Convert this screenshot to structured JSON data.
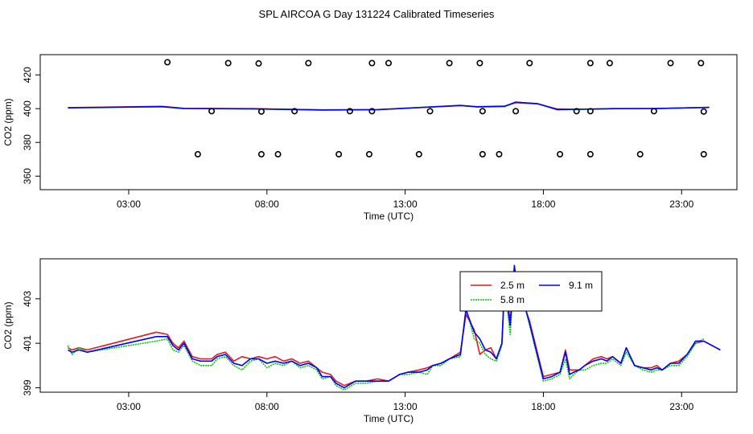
{
  "page_title": "SPL AIRCOA G  Day 131224  Calibrated Timeseries",
  "colors": {
    "red": "#e41a1c",
    "green": "#00cc00",
    "blue": "#0000ff",
    "black": "#000000"
  },
  "chart_data": [
    {
      "type": "line",
      "name": "top-panel",
      "xlabel": "Time (UTC)",
      "ylabel": "CO2 (ppm)",
      "xlim": [
        -0.2,
        25.0
      ],
      "ylim": [
        352,
        432
      ],
      "xticks": [
        3,
        8,
        13,
        18,
        23
      ],
      "xtick_labels": [
        "03:00",
        "08:00",
        "13:00",
        "18:00",
        "23:00"
      ],
      "yticks": [
        360,
        380,
        400,
        420
      ],
      "ytick_labels": [
        "360",
        "380",
        "400",
        "420"
      ],
      "series": [
        {
          "color": "red",
          "x": [
            0.8,
            4.2,
            5.0,
            7.5,
            10.0,
            12.0,
            15.0,
            15.6,
            16.6,
            17.0,
            17.8,
            18.5,
            19.2,
            20.5,
            22.0,
            24.0
          ],
          "y": [
            400.6,
            401.4,
            400.2,
            400.0,
            399.3,
            399.5,
            401.8,
            401.2,
            401.5,
            403.5,
            402.8,
            399.8,
            399.6,
            400.0,
            400.0,
            400.8
          ]
        },
        {
          "color": "green",
          "x": [
            0.8,
            4.2,
            5.0,
            7.5,
            10.0,
            12.0,
            15.0,
            15.6,
            16.6,
            17.0,
            17.8,
            18.5,
            19.2,
            20.5,
            22.0,
            24.0
          ],
          "y": [
            400.6,
            401.1,
            400.0,
            399.8,
            399.2,
            399.4,
            402.0,
            401.0,
            401.2,
            403.8,
            402.9,
            399.4,
            399.5,
            399.9,
            400.0,
            400.8
          ]
        },
        {
          "color": "blue",
          "x": [
            0.8,
            4.2,
            5.0,
            7.5,
            10.0,
            12.0,
            15.0,
            15.6,
            16.6,
            17.0,
            17.8,
            18.5,
            19.2,
            20.5,
            22.0,
            24.0
          ],
          "y": [
            400.5,
            401.2,
            400.1,
            399.9,
            399.2,
            399.4,
            401.9,
            401.1,
            401.4,
            403.9,
            402.9,
            399.5,
            399.6,
            400.0,
            400.1,
            400.7
          ]
        }
      ],
      "points": {
        "x": [
          4.4,
          6.6,
          7.7,
          9.5,
          11.8,
          12.4,
          14.6,
          15.7,
          17.5,
          19.7,
          20.4,
          22.6,
          23.7,
          6.0,
          7.8,
          9.0,
          11.0,
          11.8,
          13.9,
          15.8,
          17.0,
          19.2,
          19.7,
          22.0,
          23.8,
          5.5,
          7.8,
          8.4,
          10.6,
          11.7,
          13.5,
          15.8,
          16.4,
          18.6,
          19.7,
          21.5,
          23.8
        ],
        "y": [
          427.5,
          427.0,
          426.8,
          427.0,
          427.0,
          427.0,
          427.0,
          427.0,
          427.0,
          427.0,
          427.0,
          427.0,
          427.0,
          398.5,
          398.3,
          398.5,
          398.5,
          398.5,
          398.5,
          398.5,
          398.5,
          398.5,
          398.5,
          398.5,
          398.3,
          373.0,
          373.0,
          373.0,
          373.0,
          373.0,
          373.0,
          373.0,
          373.0,
          373.0,
          373.0,
          373.0,
          373.0
        ]
      }
    },
    {
      "type": "line",
      "name": "bottom-panel",
      "xlabel": "Time (UTC)",
      "ylabel": "CO2 (ppm)",
      "xlim": [
        -0.2,
        25.0
      ],
      "ylim": [
        398.8,
        404.8
      ],
      "xticks": [
        3,
        8,
        13,
        18,
        23
      ],
      "xtick_labels": [
        "03:00",
        "08:00",
        "13:00",
        "18:00",
        "23:00"
      ],
      "yticks": [
        399,
        401,
        403
      ],
      "ytick_labels": [
        "399",
        "401",
        "403"
      ],
      "legend": {
        "position": "top-right",
        "entries": [
          {
            "label": "2.5 m",
            "color": "red",
            "dash": "solid"
          },
          {
            "label": "5.8 m",
            "color": "green",
            "dash": "dotted"
          },
          {
            "label": "9.1 m",
            "color": "blue",
            "dash": "solid"
          }
        ]
      },
      "series": [
        {
          "name": "2.5 m",
          "color": "red",
          "x": [
            0.8,
            0.95,
            1.2,
            1.5,
            4.0,
            4.4,
            4.6,
            4.8,
            5.0,
            5.3,
            5.6,
            6.0,
            6.2,
            6.5,
            6.8,
            7.1,
            7.4,
            7.7,
            8.0,
            8.3,
            8.6,
            8.9,
            9.2,
            9.5,
            9.8,
            10.0,
            10.3,
            10.5,
            10.8,
            11.2,
            11.6,
            12.0,
            12.4,
            12.8,
            13.1,
            13.5,
            13.8,
            14.0,
            14.3,
            14.6,
            15.0,
            15.2,
            15.5,
            15.7,
            15.9,
            16.1,
            16.3,
            16.5,
            16.6,
            16.8,
            16.95,
            17.1,
            17.3,
            17.5,
            17.7,
            18.0,
            18.3,
            18.6,
            18.8,
            18.95,
            19.1,
            19.3,
            19.5,
            19.8,
            20.1,
            20.3,
            20.5,
            20.8,
            21.0,
            21.3,
            21.6,
            21.9,
            22.1,
            22.3,
            22.6,
            22.9,
            23.2,
            23.5,
            23.8,
            24.1,
            24.4
          ],
          "y": [
            400.8,
            400.7,
            400.8,
            400.7,
            401.5,
            401.4,
            401.0,
            400.8,
            401.1,
            400.4,
            400.3,
            400.3,
            400.5,
            400.6,
            400.2,
            400.4,
            400.3,
            400.4,
            400.3,
            400.4,
            400.2,
            400.3,
            400.1,
            400.2,
            399.9,
            399.7,
            399.6,
            399.3,
            399.1,
            399.3,
            399.3,
            399.4,
            399.3,
            399.6,
            399.7,
            399.8,
            399.9,
            400.0,
            400.1,
            400.3,
            400.6,
            402.3,
            401.6,
            400.5,
            400.7,
            400.8,
            400.3,
            401.0,
            403.8,
            402.0,
            404.4,
            403.2,
            402.7,
            402.0,
            401.0,
            399.5,
            399.6,
            399.7,
            400.7,
            399.8,
            399.8,
            399.8,
            400.0,
            400.3,
            400.4,
            400.3,
            400.4,
            400.1,
            400.8,
            400.0,
            399.9,
            399.9,
            400.0,
            399.8,
            400.1,
            400.2,
            400.5,
            401.0,
            401.1,
            400.9,
            400.7
          ]
        },
        {
          "name": "5.8 m",
          "color": "green",
          "x": [
            0.8,
            0.95,
            1.2,
            1.5,
            4.0,
            4.4,
            4.6,
            4.8,
            5.0,
            5.3,
            5.6,
            6.0,
            6.2,
            6.5,
            6.8,
            7.1,
            7.4,
            7.7,
            8.0,
            8.3,
            8.6,
            8.9,
            9.2,
            9.5,
            9.8,
            10.0,
            10.3,
            10.5,
            10.8,
            11.2,
            11.6,
            12.0,
            12.4,
            12.8,
            13.1,
            13.5,
            13.8,
            14.0,
            14.3,
            14.6,
            15.0,
            15.2,
            15.5,
            15.7,
            15.9,
            16.1,
            16.3,
            16.5,
            16.6,
            16.8,
            16.95,
            17.1,
            17.3,
            17.5,
            17.7,
            18.0,
            18.3,
            18.6,
            18.8,
            18.95,
            19.1,
            19.3,
            19.5,
            19.8,
            20.1,
            20.3,
            20.5,
            20.8,
            21.0,
            21.3,
            21.6,
            21.9,
            22.1,
            22.3,
            22.6,
            22.9,
            23.2,
            23.5,
            23.8
          ],
          "y": [
            400.9,
            400.5,
            400.8,
            400.6,
            401.1,
            401.2,
            400.7,
            400.6,
            400.9,
            400.2,
            400.0,
            400.0,
            400.3,
            400.4,
            400.0,
            399.8,
            400.2,
            400.3,
            399.9,
            400.1,
            400.0,
            400.2,
            399.9,
            400.0,
            399.8,
            399.4,
            399.5,
            399.1,
            398.9,
            399.2,
            399.2,
            399.3,
            399.3,
            399.6,
            399.6,
            399.7,
            399.6,
            400.0,
            400.0,
            400.3,
            400.4,
            402.6,
            401.2,
            401.0,
            400.5,
            400.3,
            400.2,
            400.9,
            403.6,
            401.4,
            404.4,
            402.5,
            402.8,
            401.8,
            400.8,
            399.3,
            399.4,
            399.6,
            400.3,
            399.4,
            399.6,
            399.8,
            399.8,
            400.0,
            400.1,
            400.1,
            400.3,
            400.0,
            400.6,
            400.0,
            399.8,
            399.7,
            399.8,
            399.8,
            400.0,
            400.0,
            400.4,
            401.0,
            401.2
          ]
        },
        {
          "name": "9.1 m",
          "color": "blue",
          "x": [
            0.8,
            0.95,
            1.2,
            1.5,
            4.0,
            4.4,
            4.6,
            4.8,
            5.0,
            5.3,
            5.6,
            6.0,
            6.2,
            6.5,
            6.8,
            7.1,
            7.4,
            7.7,
            8.0,
            8.3,
            8.6,
            8.9,
            9.2,
            9.5,
            9.8,
            10.0,
            10.3,
            10.5,
            10.8,
            11.2,
            11.6,
            12.0,
            12.4,
            12.8,
            13.1,
            13.5,
            13.8,
            14.0,
            14.3,
            14.6,
            15.0,
            15.2,
            15.5,
            15.7,
            15.9,
            16.1,
            16.3,
            16.5,
            16.6,
            16.8,
            16.95,
            17.1,
            17.3,
            17.5,
            17.7,
            18.0,
            18.3,
            18.6,
            18.8,
            18.95,
            19.1,
            19.3,
            19.5,
            19.8,
            20.1,
            20.3,
            20.5,
            20.8,
            21.0,
            21.3,
            21.6,
            21.9,
            22.1,
            22.3,
            22.6,
            22.9,
            23.2,
            23.5,
            23.8,
            24.1,
            24.4
          ],
          "y": [
            400.7,
            400.6,
            400.7,
            400.6,
            401.3,
            401.3,
            400.9,
            400.7,
            401.0,
            400.3,
            400.2,
            400.2,
            400.4,
            400.5,
            400.1,
            400.0,
            400.3,
            400.3,
            400.1,
            400.2,
            400.1,
            400.2,
            400.0,
            400.1,
            399.9,
            399.5,
            399.5,
            399.2,
            399.0,
            399.3,
            399.3,
            399.3,
            399.3,
            399.6,
            399.7,
            399.7,
            399.8,
            400.0,
            400.1,
            400.3,
            400.5,
            402.5,
            401.5,
            401.2,
            400.7,
            400.6,
            400.3,
            401.0,
            403.7,
            401.8,
            404.5,
            402.9,
            402.8,
            401.9,
            400.9,
            399.4,
            399.5,
            399.7,
            400.6,
            399.6,
            399.7,
            399.8,
            400.0,
            400.2,
            400.3,
            400.2,
            400.4,
            400.1,
            400.8,
            400.0,
            399.9,
            399.8,
            399.9,
            399.8,
            400.1,
            400.1,
            400.5,
            401.1,
            401.1,
            400.9,
            400.7
          ]
        }
      ]
    }
  ]
}
